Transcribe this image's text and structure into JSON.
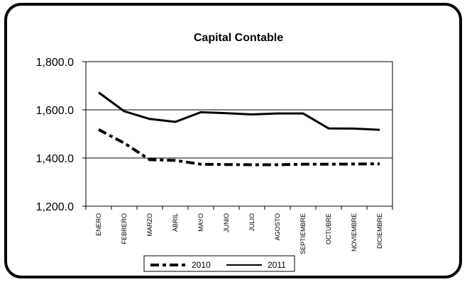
{
  "chart_data": {
    "type": "line",
    "title": "Capital Contable",
    "categories": [
      "ENERO",
      "FEBRERO",
      "MARZO",
      "ABRIL",
      "MAYO",
      "JUNIO",
      "JULIO",
      "AGOSTO",
      "SEPTIEMBRE",
      "OCTUBRE",
      "NOVIEMBRE",
      "DICIEMBRE"
    ],
    "series": [
      {
        "name": "2010",
        "style": "dash-dot",
        "color": "#000000",
        "values": [
          1518,
          1462,
          1393,
          1390,
          1374,
          1373,
          1372,
          1372,
          1374,
          1374,
          1375,
          1376
        ]
      },
      {
        "name": "2011",
        "style": "solid",
        "color": "#000000",
        "values": [
          1672,
          1594,
          1562,
          1550,
          1590,
          1586,
          1581,
          1585,
          1585,
          1523,
          1522,
          1517
        ]
      }
    ],
    "yticks": [
      "1,200.0",
      "1,400.0",
      "1,600.0",
      "1,800.0"
    ],
    "ylim": [
      1200,
      1800
    ],
    "grid": "horizontal",
    "legend_position": "bottom"
  }
}
